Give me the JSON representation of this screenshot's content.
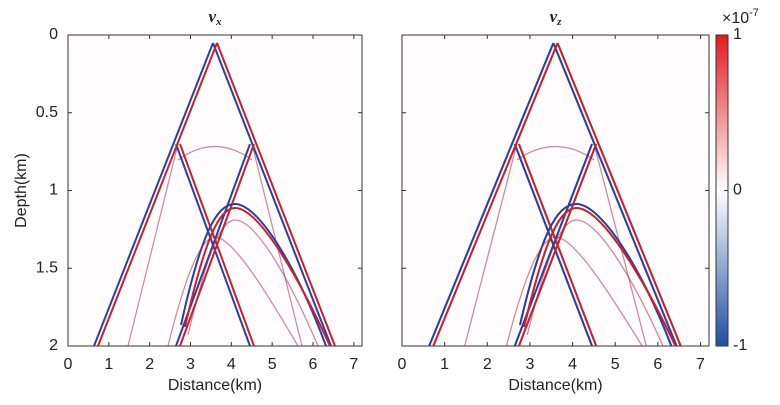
{
  "chart_data": [
    {
      "type": "image",
      "title": "v",
      "title_sub": "x",
      "xlabel": "Distance(km)",
      "ylabel": "Depth(km)",
      "xlim": [
        0,
        7.2
      ],
      "xticks": [
        0,
        1,
        2,
        3,
        4,
        5,
        6,
        7
      ],
      "ylim": [
        2,
        0
      ],
      "yticks": [
        0,
        0.5,
        1,
        1.5,
        2
      ]
    },
    {
      "type": "image",
      "title": "v",
      "title_sub": "z",
      "xlabel": "Distance(km)",
      "xlim": [
        0,
        7.2
      ],
      "xticks": [
        0,
        1,
        2,
        3,
        4,
        5,
        6,
        7
      ],
      "ylim": [
        2,
        0
      ],
      "yticks": [
        0,
        0.5,
        1,
        1.5,
        2
      ],
      "colorbar": {
        "lim": [
          -1,
          1
        ],
        "ticks": [
          -1,
          0,
          1
        ],
        "scale_label": "×10",
        "scale_exponent": "-7"
      }
    }
  ]
}
